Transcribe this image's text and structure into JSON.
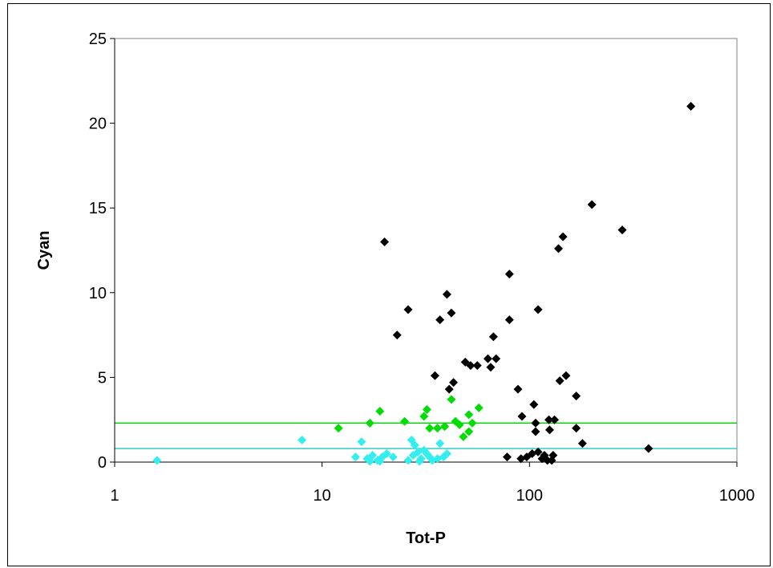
{
  "chart_data": {
    "type": "scatter",
    "xlabel": "Tot-P",
    "ylabel": "Cyan",
    "xscale": "log",
    "xlim": [
      1,
      1000
    ],
    "ylim": [
      0,
      25
    ],
    "xticks": [
      "1",
      "10",
      "100",
      "1000"
    ],
    "yticks": [
      "0",
      "5",
      "10",
      "15",
      "20",
      "25"
    ],
    "grid": false,
    "legend": false,
    "marker": "diamond",
    "reference_lines": [
      {
        "y": 2.3,
        "color": "#00cc00"
      },
      {
        "y": 0.8,
        "color": "#33cccc"
      }
    ],
    "series": [
      {
        "color": "#000000",
        "points": [
          {
            "x": 600,
            "y": 21
          },
          {
            "x": 200,
            "y": 15.2
          },
          {
            "x": 280,
            "y": 13.7
          },
          {
            "x": 145,
            "y": 13.3
          },
          {
            "x": 138,
            "y": 12.6
          },
          {
            "x": 20,
            "y": 13
          },
          {
            "x": 80,
            "y": 11.1
          },
          {
            "x": 40,
            "y": 9.9
          },
          {
            "x": 110,
            "y": 9
          },
          {
            "x": 26,
            "y": 9
          },
          {
            "x": 42,
            "y": 8.8
          },
          {
            "x": 37,
            "y": 8.4
          },
          {
            "x": 80,
            "y": 8.4
          },
          {
            "x": 23,
            "y": 7.5
          },
          {
            "x": 67,
            "y": 7.4
          },
          {
            "x": 63,
            "y": 6.1
          },
          {
            "x": 69,
            "y": 6.1
          },
          {
            "x": 49,
            "y": 5.9
          },
          {
            "x": 52,
            "y": 5.7
          },
          {
            "x": 56,
            "y": 5.7
          },
          {
            "x": 65,
            "y": 5.6
          },
          {
            "x": 35,
            "y": 5.1
          },
          {
            "x": 150,
            "y": 5.1
          },
          {
            "x": 140,
            "y": 4.8
          },
          {
            "x": 43,
            "y": 4.7
          },
          {
            "x": 41,
            "y": 4.3
          },
          {
            "x": 88,
            "y": 4.3
          },
          {
            "x": 168,
            "y": 3.9
          },
          {
            "x": 105,
            "y": 3.4
          },
          {
            "x": 92,
            "y": 2.7
          },
          {
            "x": 124,
            "y": 2.5
          },
          {
            "x": 132,
            "y": 2.5
          },
          {
            "x": 107,
            "y": 2.3
          },
          {
            "x": 168,
            "y": 2
          },
          {
            "x": 125,
            "y": 1.9
          },
          {
            "x": 107,
            "y": 1.8
          },
          {
            "x": 180,
            "y": 1.1
          },
          {
            "x": 375,
            "y": 0.8
          },
          {
            "x": 110,
            "y": 0.6
          },
          {
            "x": 103,
            "y": 0.5
          },
          {
            "x": 118,
            "y": 0.4
          },
          {
            "x": 130,
            "y": 0.4
          },
          {
            "x": 97,
            "y": 0.3
          },
          {
            "x": 78,
            "y": 0.3
          },
          {
            "x": 91,
            "y": 0.2
          },
          {
            "x": 115,
            "y": 0.2
          },
          {
            "x": 122,
            "y": 0.1
          },
          {
            "x": 128,
            "y": 0.1
          }
        ]
      },
      {
        "color": "#00dd00",
        "points": [
          {
            "x": 42,
            "y": 3.7
          },
          {
            "x": 57,
            "y": 3.2
          },
          {
            "x": 32,
            "y": 3.1
          },
          {
            "x": 19,
            "y": 3
          },
          {
            "x": 31,
            "y": 2.7
          },
          {
            "x": 51,
            "y": 2.8
          },
          {
            "x": 25,
            "y": 2.4
          },
          {
            "x": 44,
            "y": 2.4
          },
          {
            "x": 17,
            "y": 2.3
          },
          {
            "x": 46,
            "y": 2.2
          },
          {
            "x": 53,
            "y": 2.3
          },
          {
            "x": 39,
            "y": 2.1
          },
          {
            "x": 12,
            "y": 2
          },
          {
            "x": 33,
            "y": 2
          },
          {
            "x": 36,
            "y": 2
          },
          {
            "x": 51,
            "y": 1.8
          },
          {
            "x": 48,
            "y": 1.5
          }
        ]
      },
      {
        "color": "#33eeee",
        "points": [
          {
            "x": 1.6,
            "y": 0.1
          },
          {
            "x": 8,
            "y": 1.3
          },
          {
            "x": 15.5,
            "y": 1.2
          },
          {
            "x": 27,
            "y": 1.3
          },
          {
            "x": 37,
            "y": 1.1
          },
          {
            "x": 28,
            "y": 1
          },
          {
            "x": 31,
            "y": 0.7
          },
          {
            "x": 14.5,
            "y": 0.3
          },
          {
            "x": 16.5,
            "y": 0.2
          },
          {
            "x": 17.5,
            "y": 0.4
          },
          {
            "x": 18.5,
            "y": 0.1
          },
          {
            "x": 19.5,
            "y": 0.3
          },
          {
            "x": 20.5,
            "y": 0.5
          },
          {
            "x": 22,
            "y": 0.3
          },
          {
            "x": 26,
            "y": 0.1
          },
          {
            "x": 27.5,
            "y": 0.4
          },
          {
            "x": 29,
            "y": 0.6
          },
          {
            "x": 30,
            "y": 0.2
          },
          {
            "x": 32,
            "y": 0.5
          },
          {
            "x": 33,
            "y": 0.3
          },
          {
            "x": 34,
            "y": 0.1
          },
          {
            "x": 36,
            "y": 0.2
          },
          {
            "x": 38.5,
            "y": 0.3
          },
          {
            "x": 40,
            "y": 0.5
          },
          {
            "x": 17,
            "y": 0.05
          },
          {
            "x": 19,
            "y": 0.05
          },
          {
            "x": 29.5,
            "y": 0.05
          }
        ]
      }
    ]
  }
}
